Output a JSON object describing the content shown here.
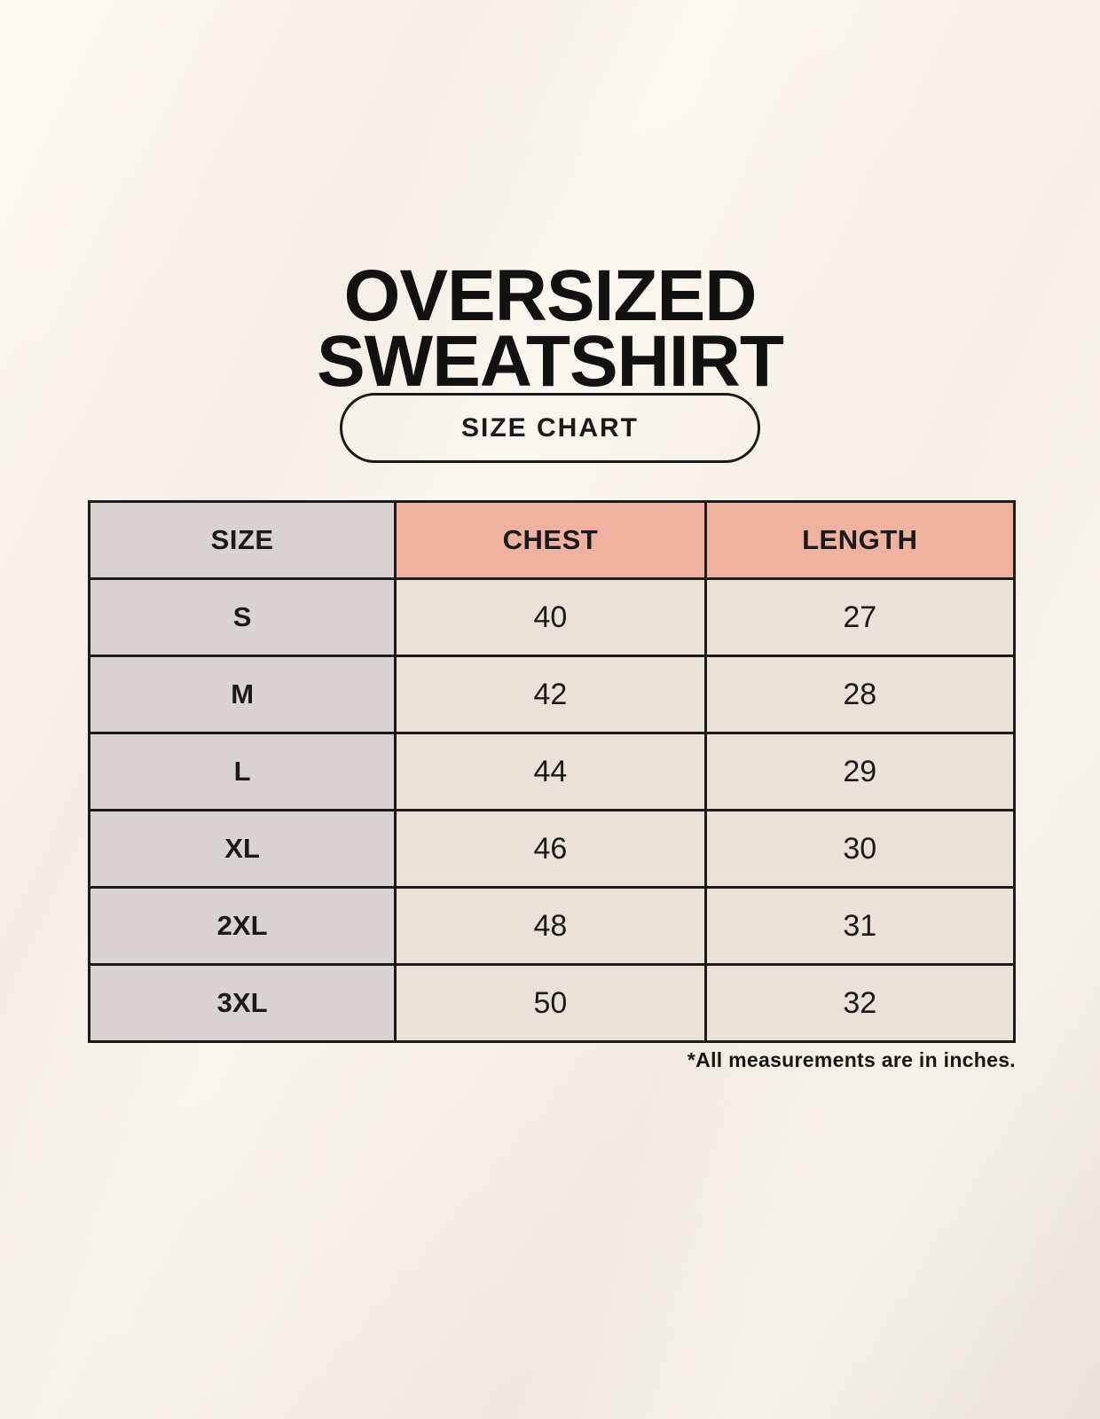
{
  "page": {
    "title_line1": "OVERSIZED",
    "title_line2": "SWEATSHIRT"
  },
  "size_chart_button": {
    "label": "SIZE CHART"
  },
  "size_table": {
    "columns": [
      "SIZE",
      "CHEST",
      "LENGTH"
    ],
    "rows": [
      {
        "size": "S",
        "chest": "40",
        "length": "27"
      },
      {
        "size": "M",
        "chest": "42",
        "length": "28"
      },
      {
        "size": "L",
        "chest": "44",
        "length": "29"
      },
      {
        "size": "XL",
        "chest": "46",
        "length": "30"
      },
      {
        "size": "2XL",
        "chest": "48",
        "length": "31"
      },
      {
        "size": "3XL",
        "chest": "50",
        "length": "32"
      }
    ],
    "footnote": "*All measurements are in inches."
  },
  "colors": {
    "background": "#F6F2E8",
    "header_accent": "#EFB2A0",
    "size_column_gray": "#D9D3D1",
    "cell_cream": "#E9E2D6",
    "border": "#1B1B1B",
    "text": "#1A1A1A"
  }
}
